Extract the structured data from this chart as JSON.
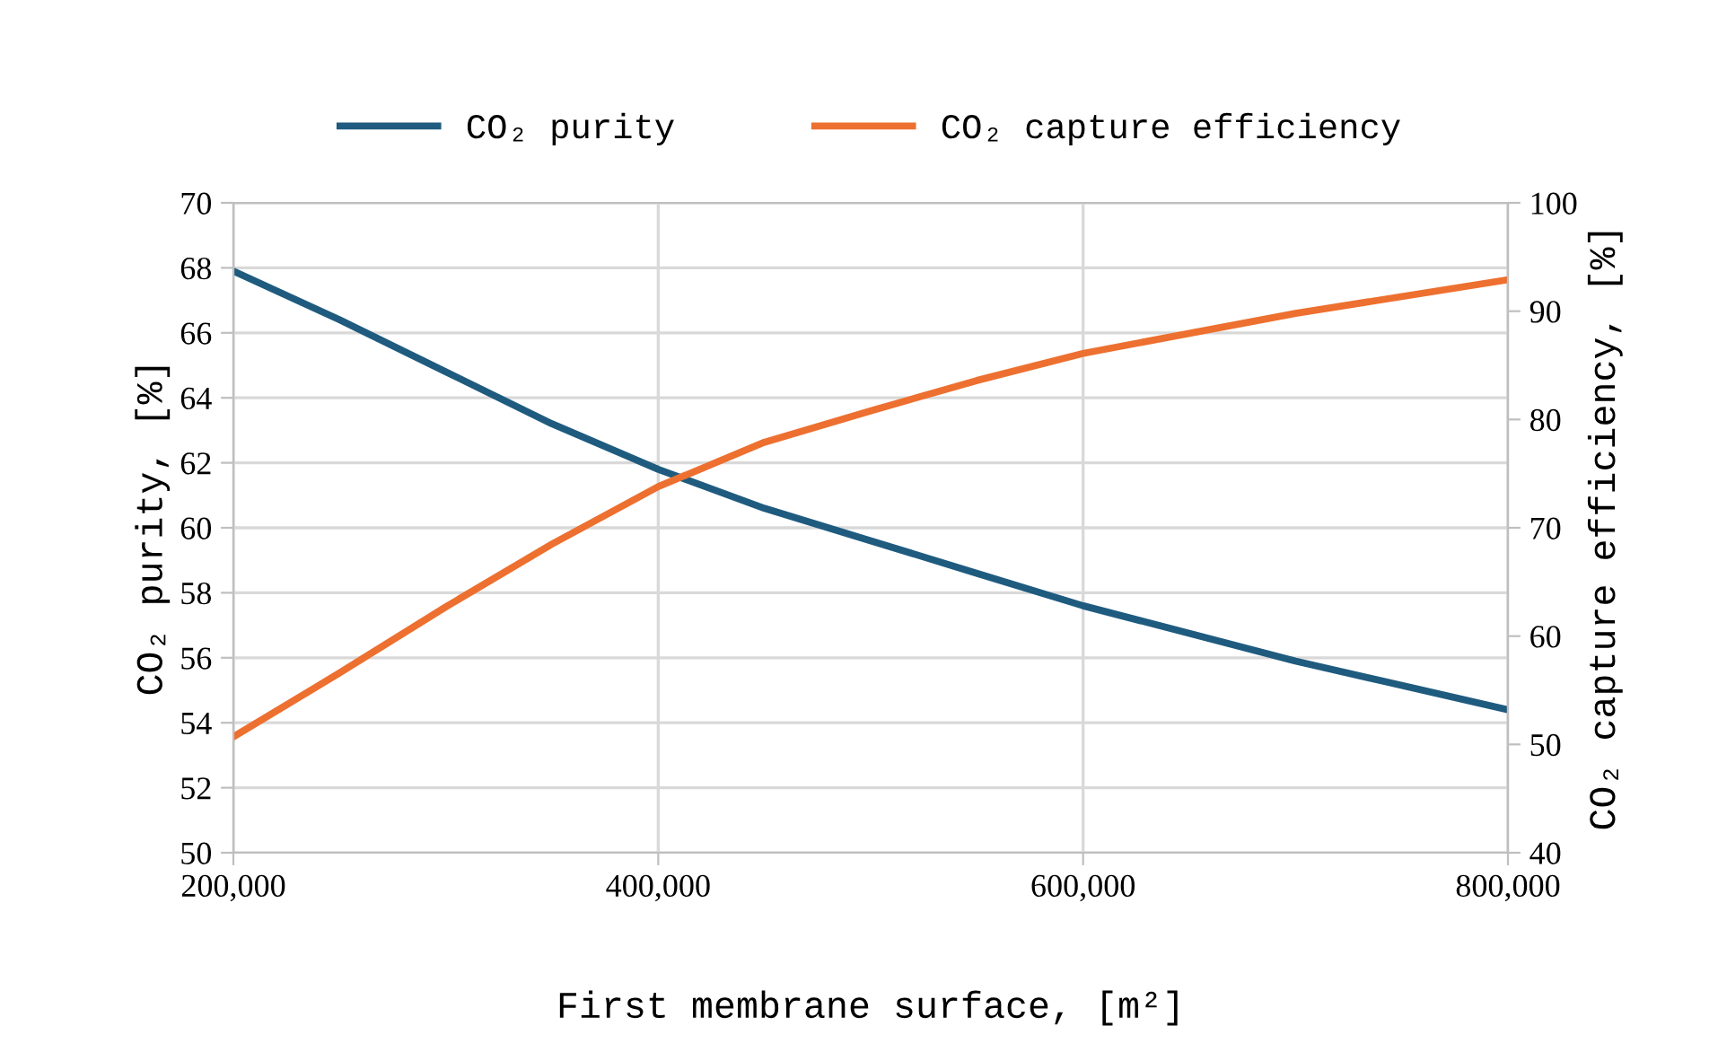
{
  "chart_data": {
    "type": "line",
    "xlabel": "First membrane surface, [m²]",
    "ylabel": "CO₂ purity, [%]",
    "y2label": "CO₂ capture efficiency, [%]",
    "x": [
      200000,
      250000,
      300000,
      350000,
      400000,
      450000,
      500000,
      550000,
      600000,
      700000,
      800000
    ],
    "series": [
      {
        "name": "CO₂ purity",
        "color": "#1f5b7f",
        "values": [
          67.9,
          66.4,
          64.8,
          63.2,
          61.8,
          60.6,
          59.6,
          58.6,
          57.6,
          55.9,
          54.4
        ]
      },
      {
        "name": "CO₂ capture efficiency",
        "color": "#ed7030",
        "axis": "y2",
        "values": [
          50.7,
          56.6,
          62.7,
          68.5,
          73.8,
          77.9,
          80.8,
          83.6,
          86.1,
          89.8,
          92.9
        ]
      }
    ],
    "xlim": [
      200000,
      800000
    ],
    "xticks": [
      {
        "value": 200000,
        "label": "200,000"
      },
      {
        "value": 400000,
        "label": "400,000"
      },
      {
        "value": 600000,
        "label": "600,000"
      },
      {
        "value": 800000,
        "label": "800,000"
      }
    ],
    "ylim": [
      50,
      70
    ],
    "yticks": [
      50,
      52,
      54,
      56,
      58,
      60,
      62,
      64,
      66,
      68,
      70
    ],
    "y2lim": [
      40,
      100
    ],
    "y2ticks": [
      40,
      50,
      60,
      70,
      80,
      90,
      100
    ],
    "grid": true,
    "legend": "top",
    "marker": "none",
    "line_style": "solid"
  }
}
